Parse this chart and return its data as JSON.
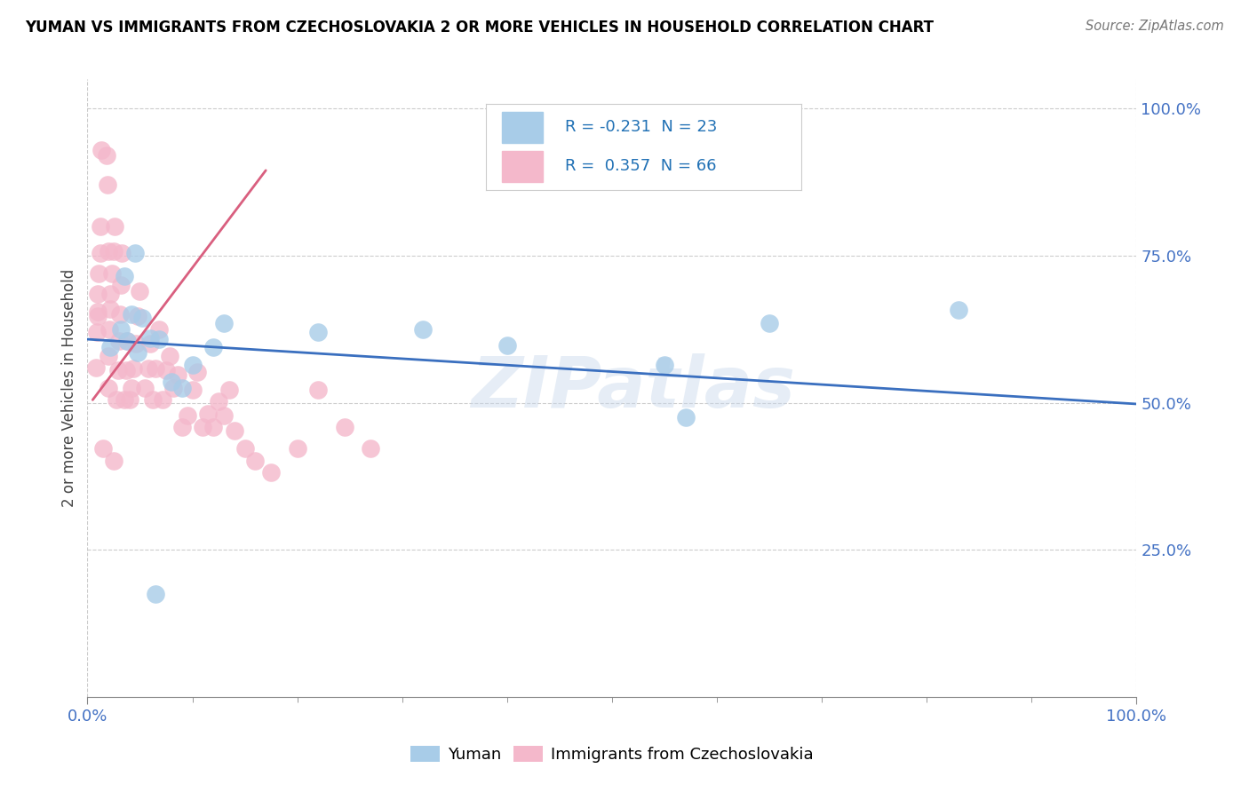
{
  "title": "YUMAN VS IMMIGRANTS FROM CZECHOSLOVAKIA 2 OR MORE VEHICLES IN HOUSEHOLD CORRELATION CHART",
  "source": "Source: ZipAtlas.com",
  "ylabel": "2 or more Vehicles in Household",
  "xlim": [
    0,
    1.0
  ],
  "ylim": [
    0.0,
    1.05
  ],
  "xticklabels_bottom": [
    "0.0%",
    "100.0%"
  ],
  "xticks_bottom": [
    0.0,
    1.0
  ],
  "yticklabels_right": [
    "25.0%",
    "50.0%",
    "75.0%",
    "100.0%"
  ],
  "yticks_right": [
    0.25,
    0.5,
    0.75,
    1.0
  ],
  "legend_r1": "-0.231",
  "legend_n1": "23",
  "legend_r2": "0.357",
  "legend_n2": "66",
  "blue_color": "#a8cce8",
  "blue_line_color": "#3a6fbf",
  "pink_color": "#f4b8cb",
  "pink_line_color": "#d95f7f",
  "watermark": "ZIPatlas",
  "blue_scatter_x": [
    0.022,
    0.032,
    0.035,
    0.038,
    0.042,
    0.045,
    0.048,
    0.052,
    0.06,
    0.068,
    0.08,
    0.09,
    0.1,
    0.12,
    0.13,
    0.22,
    0.32,
    0.4,
    0.55,
    0.57,
    0.65,
    0.83,
    0.065
  ],
  "blue_scatter_y": [
    0.595,
    0.625,
    0.715,
    0.605,
    0.65,
    0.755,
    0.585,
    0.645,
    0.61,
    0.608,
    0.535,
    0.525,
    0.565,
    0.595,
    0.635,
    0.62,
    0.625,
    0.598,
    0.565,
    0.475,
    0.635,
    0.658,
    0.175
  ],
  "pink_scatter_x": [
    0.008,
    0.009,
    0.01,
    0.01,
    0.011,
    0.012,
    0.012,
    0.013,
    0.018,
    0.019,
    0.02,
    0.02,
    0.021,
    0.022,
    0.022,
    0.023,
    0.025,
    0.026,
    0.028,
    0.029,
    0.03,
    0.031,
    0.032,
    0.033,
    0.035,
    0.037,
    0.038,
    0.04,
    0.042,
    0.044,
    0.046,
    0.048,
    0.05,
    0.055,
    0.058,
    0.06,
    0.062,
    0.065,
    0.068,
    0.072,
    0.075,
    0.078,
    0.082,
    0.086,
    0.09,
    0.095,
    0.1,
    0.105,
    0.11,
    0.115,
    0.12,
    0.125,
    0.13,
    0.135,
    0.14,
    0.15,
    0.16,
    0.175,
    0.2,
    0.22,
    0.245,
    0.27,
    0.01,
    0.015,
    0.02,
    0.025
  ],
  "pink_scatter_y": [
    0.56,
    0.62,
    0.655,
    0.685,
    0.72,
    0.755,
    0.8,
    0.93,
    0.92,
    0.87,
    0.525,
    0.58,
    0.625,
    0.66,
    0.685,
    0.72,
    0.758,
    0.8,
    0.505,
    0.555,
    0.605,
    0.65,
    0.7,
    0.755,
    0.505,
    0.555,
    0.605,
    0.505,
    0.525,
    0.558,
    0.6,
    0.648,
    0.69,
    0.525,
    0.558,
    0.6,
    0.505,
    0.558,
    0.625,
    0.505,
    0.555,
    0.58,
    0.525,
    0.548,
    0.458,
    0.478,
    0.522,
    0.552,
    0.458,
    0.482,
    0.458,
    0.502,
    0.478,
    0.522,
    0.452,
    0.422,
    0.402,
    0.382,
    0.422,
    0.522,
    0.458,
    0.422,
    0.648,
    0.422,
    0.758,
    0.402
  ],
  "blue_line_x": [
    0.0,
    1.0
  ],
  "blue_line_y": [
    0.608,
    0.498
  ],
  "pink_line_x": [
    0.005,
    0.17
  ],
  "pink_line_y": [
    0.505,
    0.895
  ]
}
